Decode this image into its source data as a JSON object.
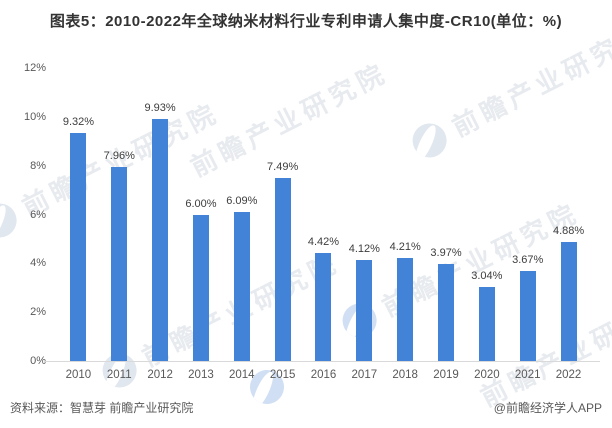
{
  "title": "图表5：2010-2022年全球纳米材料行业专利申请人集中度-CR10(单位：%)",
  "chart_data": {
    "type": "bar",
    "title": "图表5：2010-2022年全球纳米材料行业专利申请人集中度-CR10(单位：%)",
    "categories": [
      "2010",
      "2011",
      "2012",
      "2013",
      "2014",
      "2015",
      "2016",
      "2017",
      "2018",
      "2019",
      "2020",
      "2021",
      "2022"
    ],
    "values": [
      9.32,
      7.96,
      9.93,
      6.0,
      6.09,
      7.49,
      4.42,
      4.12,
      4.21,
      3.97,
      3.04,
      3.67,
      4.88
    ],
    "value_labels": [
      "9.32%",
      "7.96%",
      "9.93%",
      "6.00%",
      "6.09%",
      "7.49%",
      "4.42%",
      "4.12%",
      "4.21%",
      "3.97%",
      "3.04%",
      "3.67%",
      "4.88%"
    ],
    "xlabel": "",
    "ylabel": "",
    "ylim": [
      0,
      12
    ],
    "ytick_values": [
      0,
      2,
      4,
      6,
      8,
      10,
      12
    ],
    "ytick_labels": [
      "0%",
      "2%",
      "4%",
      "6%",
      "8%",
      "10%",
      "12%"
    ],
    "grid": false,
    "legend_position": "none",
    "bar_color": "#4282D7"
  },
  "footer": {
    "source": "资料来源：智慧芽 前瞻产业研究院",
    "credit": "@前瞻经济学人APP"
  },
  "watermark": {
    "text": "前瞻产业研究院"
  }
}
